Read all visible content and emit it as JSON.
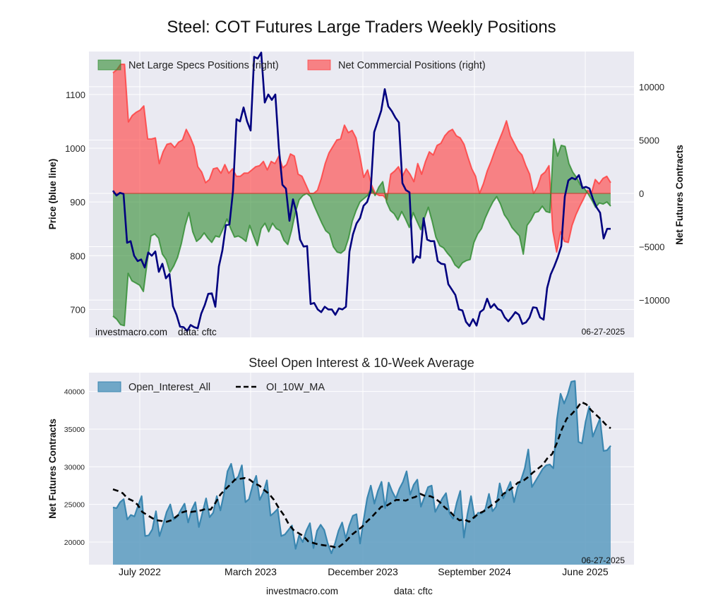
{
  "page": {
    "title": "Steel: COT Futures Large Traders Weekly Positions",
    "footer_site": "investmacro.com",
    "footer_data": "data: cftc"
  },
  "chart_data": [
    {
      "type": "area",
      "title": "Steel: COT Futures Large Traders Weekly Positions",
      "ylabel_left": "Price (blue line)",
      "ylabel_right": "Net Futures Contracts",
      "ylim_left": [
        648,
        1180
      ],
      "ylim_right": [
        -13500,
        13300
      ],
      "yticks_left": [
        700,
        800,
        900,
        1000,
        1100
      ],
      "yticks_right": [
        -10000,
        -5000,
        0,
        5000,
        10000
      ],
      "ytick_labels_right": [
        "−10000",
        "−5000",
        "0",
        "5000",
        "10000"
      ],
      "xticks": [
        "July 2022",
        "March 2023",
        "December 2023",
        "September 2024",
        "June 2025"
      ],
      "grid": true,
      "legend": {
        "placement": "top-left",
        "entries": [
          "Net Large Specs Positions (right)",
          "Net Commercial Positions (right)"
        ]
      },
      "annotations": {
        "source_left": "investmacro.com",
        "source_data": "data: cftc",
        "date": "06-27-2025"
      },
      "colors": {
        "specs": "#2e8b2e",
        "commercial": "#ff3b3b",
        "price": "#00007f",
        "background": "#eaeaf2"
      },
      "x_start": "2022-06",
      "x_end": "2025-06-27",
      "series": [
        {
          "name": "Price",
          "axis": "left",
          "values": [
            921,
            912,
            917,
            915,
            824,
            827,
            800,
            790,
            793,
            778,
            806,
            800,
            808,
            770,
            785,
            758,
            766,
            706,
            690,
            668,
            667,
            660,
            671,
            667,
            665,
            692,
            708,
            729,
            730,
            705,
            780,
            810,
            857,
            858,
            920,
            1054,
            1050,
            1076,
            1050,
            1033,
            1170,
            1167,
            1178,
            1085,
            1100,
            1090,
            1100,
            1000,
            932,
            925,
            865,
            905,
            880,
            830,
            817,
            818,
            710,
            712,
            700,
            695,
            705,
            700,
            700,
            690,
            702,
            700,
            705,
            808,
            840,
            860,
            870,
            893,
            900,
            920,
            1030,
            1050,
            1070,
            1110,
            1078,
            1069,
            1057,
            1048,
            935,
            922,
            918,
            787,
            799,
            796,
            870,
            830,
            827,
            827,
            790,
            785,
            784,
            747,
            737,
            727,
            700,
            698,
            677,
            669,
            682,
            670,
            695,
            700,
            720,
            703,
            710,
            701,
            698,
            685,
            678,
            686,
            695,
            690,
            673,
            676,
            685,
            704,
            703,
            685,
            681,
            740,
            765,
            780,
            797,
            818,
            910,
            940,
            945,
            942,
            950,
            926,
            928,
            925,
            905,
            890,
            880,
            832,
            850,
            850
          ]
        },
        {
          "name": "Net Large Specs Positions (right)",
          "axis": "right",
          "values": [
            -11500,
            -11800,
            -12300,
            -12400,
            -7500,
            -8200,
            -8400,
            -8600,
            -9200,
            -6500,
            -4000,
            -3800,
            -4200,
            -5700,
            -6200,
            -7400,
            -6800,
            -6000,
            -4700,
            -3000,
            -1800,
            -3600,
            -4500,
            -4200,
            -3700,
            -4200,
            -4600,
            -4000,
            -4100,
            -3300,
            -2400,
            -3300,
            -4100,
            -4000,
            -4200,
            -4500,
            -3000,
            -4000,
            -4900,
            -3300,
            -2800,
            -3600,
            -2800,
            -3300,
            -3500,
            -4400,
            -4800,
            -3500,
            -1800,
            -600,
            -200,
            0,
            -300,
            -1200,
            -2000,
            -2800,
            -3500,
            -3800,
            -5000,
            -5500,
            -5600,
            -5300,
            -4200,
            -2600,
            -1600,
            -800,
            -500,
            -200,
            500,
            -200,
            600,
            1100,
            -800,
            -1600,
            -1900,
            -2500,
            -1700,
            -2400,
            -3200,
            -1800,
            -2600,
            -3400,
            -2300,
            -1300,
            -2600,
            -4100,
            -4900,
            -5100,
            -5600,
            -6000,
            -6700,
            -7000,
            -6500,
            -6300,
            -6200,
            -4600,
            -3800,
            -3300,
            -2300,
            -1500,
            -800,
            -300,
            -1000,
            -2000,
            -2500,
            -3200,
            -3600,
            -4000,
            -5700,
            -3000,
            -2500,
            -1800,
            -1700,
            -1200,
            -1700,
            -1800,
            5100,
            3500,
            4500,
            4400,
            2800,
            2000,
            1500,
            800,
            500,
            0,
            -600,
            -1300,
            -900,
            -1000,
            -800,
            -1200
          ]
        },
        {
          "name": "Net Commercial Positions (right)",
          "axis": "right",
          "values": [
            11300,
            11600,
            12100,
            12100,
            6700,
            7300,
            7600,
            7800,
            8200,
            5100,
            5100,
            5200,
            2800,
            3900,
            4600,
            4700,
            4300,
            4800,
            5000,
            6000,
            5300,
            4400,
            2500,
            2000,
            1000,
            1300,
            2300,
            2400,
            1900,
            2700,
            1900,
            2300,
            1600,
            1600,
            1900,
            1900,
            2200,
            2500,
            2600,
            3000,
            2200,
            3000,
            2800,
            3500,
            2400,
            2700,
            3700,
            3500,
            1800,
            1600,
            800,
            0,
            0,
            300,
            1400,
            2800,
            3800,
            4400,
            5000,
            5100,
            6400,
            5700,
            5900,
            5200,
            3500,
            1500,
            2200,
            800,
            0,
            -200,
            -200,
            -600,
            1800,
            2100,
            2500,
            1600,
            2300,
            1800,
            1100,
            2800,
            1800,
            3000,
            3900,
            3600,
            4500,
            4700,
            5400,
            5800,
            6000,
            5400,
            5200,
            4600,
            3400,
            2300,
            1600,
            0,
            900,
            2100,
            3000,
            4000,
            4900,
            5800,
            6800,
            5400,
            4700,
            4000,
            3600,
            2600,
            1800,
            0,
            600,
            1700,
            2000,
            2600,
            -3500,
            -5500,
            -3600,
            -4500,
            -4600,
            -3000,
            -2000,
            -1200,
            -500,
            300,
            0,
            1300,
            900,
            1400,
            1600,
            1000
          ]
        }
      ]
    },
    {
      "type": "area",
      "title": "Steel Open Interest & 10-Week Average",
      "ylabel": "Net Futures Contracts",
      "ylim": [
        17000,
        42500
      ],
      "yticks": [
        20000,
        25000,
        30000,
        35000,
        40000
      ],
      "xticks": [
        "July 2022",
        "March 2023",
        "December 2023",
        "September 2024",
        "June 2025"
      ],
      "grid": true,
      "legend": {
        "placement": "top-left",
        "entries": [
          "Open_Interest_All",
          "OI_10W_MA"
        ]
      },
      "annotations": {
        "date": "06-27-2025"
      },
      "colors": {
        "open_interest": "#5b9bc0",
        "open_interest_line": "#3a86b0",
        "ma": "#000000"
      },
      "series": [
        {
          "name": "Open_Interest_All",
          "values": [
            24600,
            24500,
            25300,
            25700,
            23000,
            23600,
            23400,
            24800,
            26100,
            20800,
            20900,
            21700,
            24100,
            20800,
            22300,
            24000,
            25000,
            23000,
            23400,
            24300,
            25100,
            22600,
            24300,
            25300,
            22000,
            23900,
            25800,
            23300,
            23900,
            26100,
            24200,
            26400,
            29400,
            30400,
            28200,
            28700,
            30200,
            25300,
            25700,
            27500,
            28800,
            25600,
            26600,
            28200,
            23500,
            23900,
            24400,
            20800,
            21000,
            21600,
            22200,
            19100,
            20900,
            20000,
            21500,
            22500,
            19200,
            21500,
            22300,
            21600,
            19800,
            18500,
            19800,
            21500,
            22600,
            20500,
            22200,
            23500,
            23700,
            19800,
            22900,
            25800,
            27500,
            25100,
            26800,
            28000,
            24500,
            27900,
            26700,
            25800,
            27100,
            28000,
            29400,
            26300,
            27600,
            28300,
            24700,
            26000,
            27300,
            27500,
            24000,
            24900,
            25800,
            26500,
            23800,
            23100,
            25200,
            26800,
            20600,
            23700,
            26100,
            23200,
            23900,
            23800,
            24400,
            26400,
            24100,
            24700,
            27800,
            25800,
            26900,
            28000,
            25300,
            27300,
            28300,
            29800,
            32300,
            27300,
            28100,
            28900,
            29700,
            30200,
            30300,
            29800,
            36300,
            39700,
            38400,
            39600,
            41300,
            41400,
            33300,
            33100,
            36000,
            38000,
            34000,
            35200,
            36400,
            32100,
            32200,
            32800
          ]
        },
        {
          "name": "OI_10W_MA",
          "values": [
            27000,
            26800,
            26500,
            25800,
            25500,
            25000,
            24000,
            23600,
            23200,
            22900,
            22800,
            22700,
            22900,
            23400,
            23900,
            24100,
            24000,
            24100,
            24200,
            24400,
            24300,
            25200,
            26300,
            27000,
            27600,
            28300,
            28400,
            28500,
            28300,
            27800,
            27500,
            26900,
            26400,
            25600,
            24500,
            23600,
            22400,
            21600,
            21200,
            20800,
            20100,
            19900,
            19700,
            19600,
            19500,
            19400,
            19200,
            19700,
            20300,
            21000,
            21500,
            22000,
            22700,
            23300,
            24000,
            24700,
            24800,
            25200,
            25600,
            25600,
            25500,
            25800,
            26000,
            26400,
            26100,
            26100,
            25800,
            25300,
            24600,
            24100,
            23400,
            22900,
            23000,
            22700,
            23300,
            23800,
            24100,
            24600,
            25100,
            25600,
            26400,
            26800,
            27300,
            27900,
            28100,
            28600,
            29200,
            29700,
            30200,
            31100,
            31700,
            33200,
            35000,
            36400,
            37000,
            37700,
            38600,
            38300,
            37500,
            36900,
            36300,
            35600,
            35100
          ]
        }
      ]
    }
  ]
}
